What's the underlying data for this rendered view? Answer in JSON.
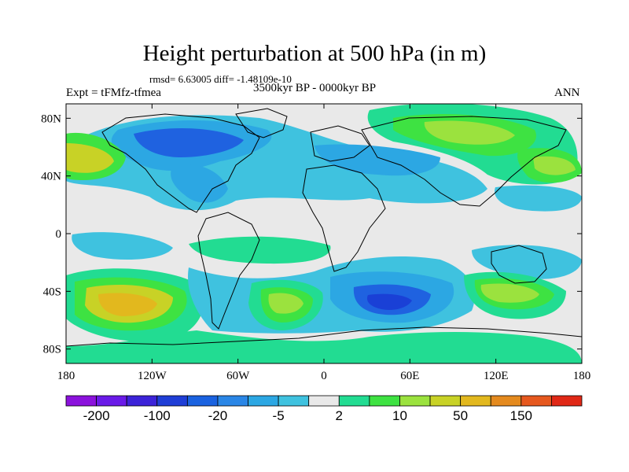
{
  "title": "Height perturbation at 500 hPa (in m)",
  "stats": "rmsd= 6.63005 diff= -1.48109e-10",
  "experiment": "Expt = tFMfz-tfmea",
  "period": "3500kyr BP - 0000kyr BP",
  "season": "ANN",
  "axes": {
    "lon_ticks": [
      "180",
      "120W",
      "60W",
      "0",
      "60E",
      "120E",
      "180"
    ],
    "lat_ticks": [
      "80N",
      "40N",
      "0",
      "40S",
      "80S"
    ]
  },
  "colorbar": {
    "labels": [
      "-200",
      "-100",
      "-20",
      "-5",
      "2",
      "10",
      "50",
      "150"
    ],
    "colors": [
      "#8b12dc",
      "#6a1ae8",
      "#3c23d8",
      "#1f3ed6",
      "#1a62e0",
      "#2a86e6",
      "#2ca7e3",
      "#3fc2df",
      "#e9e9e9",
      "#22dc92",
      "#3ee242",
      "#9be23e",
      "#c8d226",
      "#e2b81e",
      "#e48a1e",
      "#e6581e",
      "#e02816"
    ]
  },
  "map_colors": {
    "ocean_neutral": "#e9e9e9",
    "neg_light": "#3fc2df",
    "neg_mid": "#2ca7e3",
    "neg_strong": "#1f62e0",
    "neg_core": "#1a40d6",
    "pos_light": "#22dc92",
    "pos_mid": "#3ee242",
    "pos_strong": "#9be23e",
    "pos_core": "#c8d226",
    "pos_peak": "#e2b81e"
  }
}
